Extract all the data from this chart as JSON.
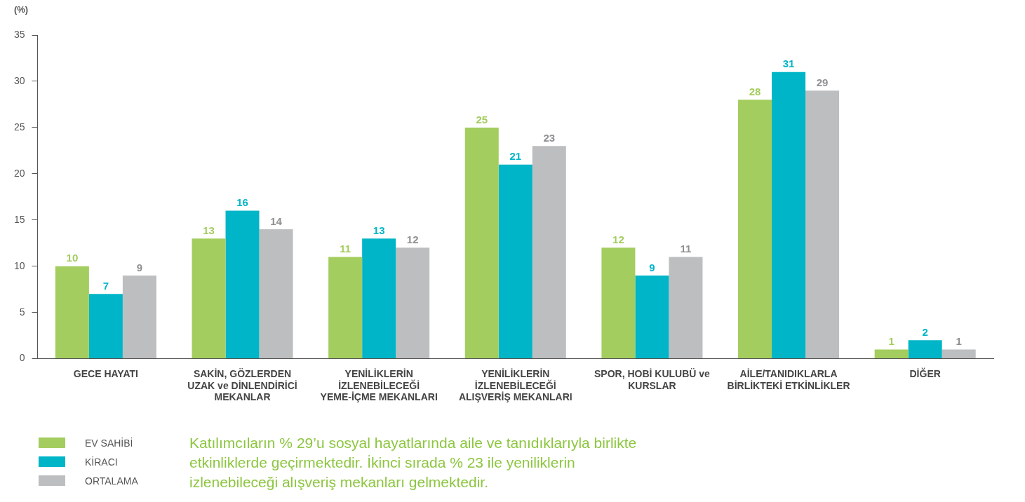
{
  "chart_data": {
    "type": "bar",
    "ylabel": "(%)",
    "categories": [
      "GECE HAYATI",
      "SAKİN, GÖZLERDEN UZAK ve DİNLENDİRİCİ MEKANLAR",
      "YENİLİKLERİN İZLENEBİLECEĞİ YEME-İÇME MEKANLARI",
      "YENİLİKLERİN İZLENEBİLECEĞİ ALIŞVERİŞ MEKANLARI",
      "SPOR, HOBİ KULUBÜ ve KURSLAR",
      "AİLE/TANIDIKLARLA BİRLİKTEKİ ETKİNLİKLER",
      "DİĞER"
    ],
    "series": [
      {
        "name": "EV SAHİBİ",
        "color": "#a3cd5e",
        "values": [
          10,
          13,
          11,
          25,
          12,
          28,
          1
        ]
      },
      {
        "name": "KİRACI",
        "color": "#00b5c7",
        "values": [
          7,
          16,
          13,
          21,
          9,
          31,
          2
        ]
      },
      {
        "name": "ORTALAMA",
        "color": "#bdbec0",
        "values": [
          9,
          14,
          12,
          23,
          11,
          29,
          1
        ]
      }
    ],
    "ylim": [
      0,
      35
    ],
    "yticks": [
      0,
      5,
      10,
      15,
      20,
      25,
      30,
      35
    ],
    "grid": false,
    "data_labels": true,
    "legend": "bottom left",
    "annotations": [
      "Katılımcıların % 29’u sosyal hayatlarında aile ve tanıdıklarıyla birlikte etkinliklerde geçirmektedir. İkinci sırada % 23 ile yeniliklerin izlenebileceği alışveriş mekanları gelmektedir."
    ]
  }
}
